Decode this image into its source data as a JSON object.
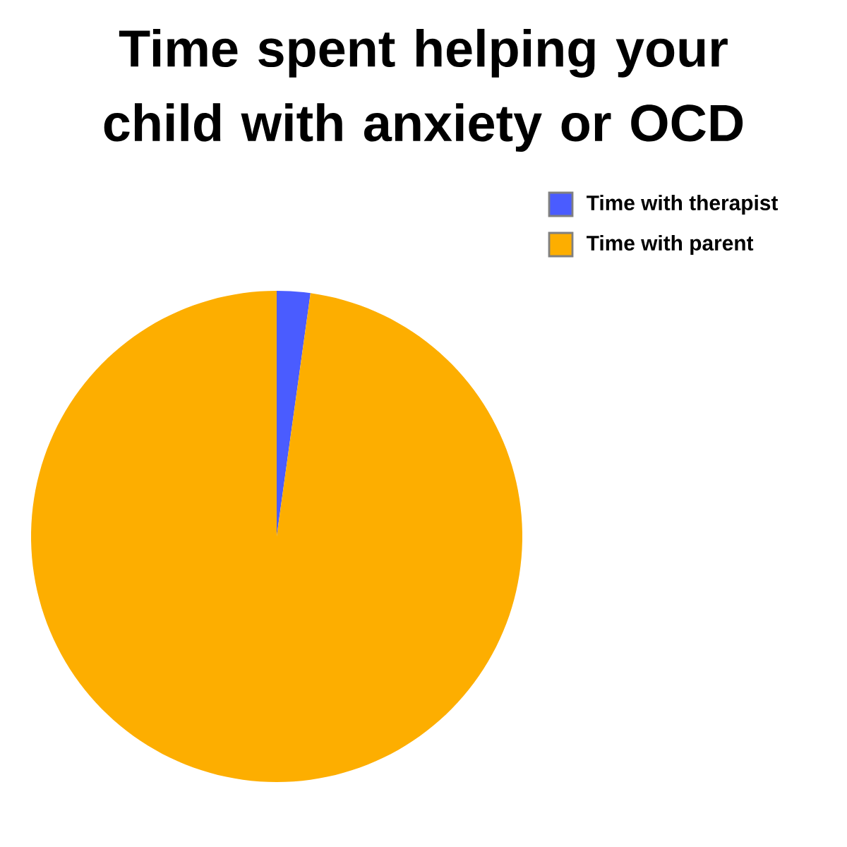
{
  "chart_data": {
    "type": "pie",
    "title": "Time spent helping your child with anxiety or OCD",
    "categories": [
      "Time with therapist",
      "Time with parent"
    ],
    "values": [
      2.2,
      97.8
    ],
    "colors": [
      "#4a5cff",
      "#fdae00"
    ],
    "legend": "top right"
  }
}
